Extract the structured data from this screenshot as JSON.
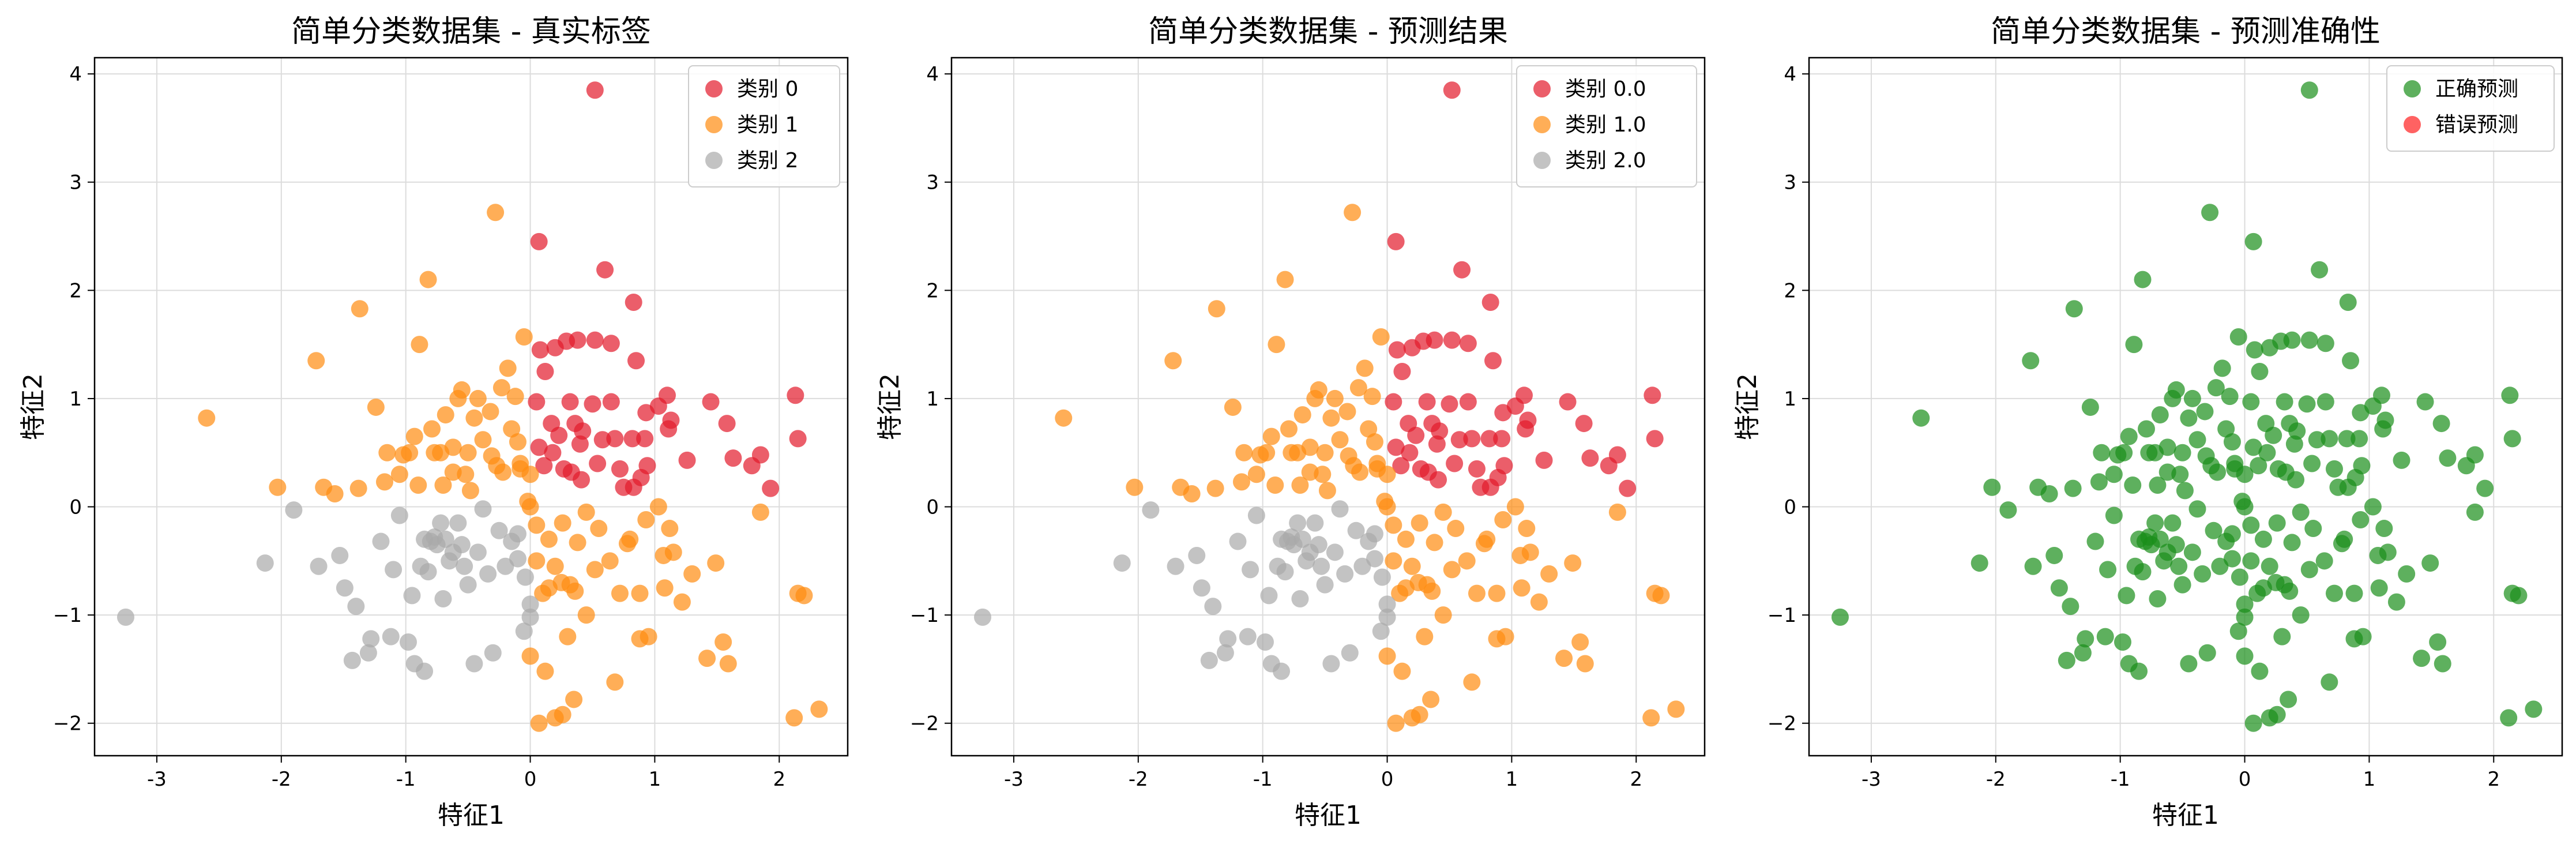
{
  "chart_data": [
    {
      "type": "scatter",
      "title": "简单分类数据集 - 真实标签",
      "xlabel": "特征1",
      "ylabel": "特征2",
      "xlim": [
        -3.5,
        2.55
      ],
      "ylim": [
        -2.3,
        4.15
      ],
      "xticks": [
        "-3",
        "-2",
        "-1",
        "0",
        "1",
        "2"
      ],
      "yticks": [
        "−2",
        "−1",
        "0",
        "1",
        "2",
        "3",
        "4"
      ],
      "grid": true,
      "legend_position": "top-right",
      "series": [
        {
          "name": "类别 0",
          "color": "#e31a2b",
          "points": [
            [
              0.52,
              3.85
            ],
            [
              0.07,
              2.45
            ],
            [
              0.6,
              2.19
            ],
            [
              0.83,
              1.89
            ],
            [
              0.29,
              1.53
            ],
            [
              0.38,
              1.54
            ],
            [
              0.52,
              1.54
            ],
            [
              0.65,
              1.51
            ],
            [
              0.2,
              1.47
            ],
            [
              0.08,
              1.45
            ],
            [
              0.85,
              1.35
            ],
            [
              0.12,
              1.25
            ],
            [
              0.32,
              0.97
            ],
            [
              0.05,
              0.97
            ],
            [
              0.5,
              0.95
            ],
            [
              0.65,
              0.97
            ],
            [
              0.93,
              0.87
            ],
            [
              1.03,
              0.93
            ],
            [
              1.1,
              1.03
            ],
            [
              1.45,
              0.97
            ],
            [
              2.13,
              1.03
            ],
            [
              0.17,
              0.77
            ],
            [
              0.23,
              0.66
            ],
            [
              0.36,
              0.77
            ],
            [
              0.4,
              0.58
            ],
            [
              0.58,
              0.62
            ],
            [
              0.68,
              0.63
            ],
            [
              0.82,
              0.63
            ],
            [
              0.92,
              0.63
            ],
            [
              1.13,
              0.8
            ],
            [
              1.11,
              0.72
            ],
            [
              1.58,
              0.77
            ],
            [
              0.07,
              0.55
            ],
            [
              0.11,
              0.38
            ],
            [
              0.18,
              0.5
            ],
            [
              0.27,
              0.35
            ],
            [
              0.33,
              0.32
            ],
            [
              0.41,
              0.25
            ],
            [
              0.54,
              0.4
            ],
            [
              0.72,
              0.35
            ],
            [
              0.75,
              0.18
            ],
            [
              0.83,
              0.18
            ],
            [
              0.89,
              0.27
            ],
            [
              0.94,
              0.38
            ],
            [
              1.26,
              0.43
            ],
            [
              1.63,
              0.45
            ],
            [
              1.78,
              0.38
            ],
            [
              1.85,
              0.48
            ],
            [
              1.93,
              0.17
            ],
            [
              2.15,
              0.63
            ],
            [
              0.42,
              0.7
            ]
          ]
        },
        {
          "name": "类别 1",
          "color": "#ff8c0f",
          "points": [
            [
              -2.6,
              0.82
            ],
            [
              -2.03,
              0.18
            ],
            [
              -1.72,
              1.35
            ],
            [
              -1.66,
              0.18
            ],
            [
              -1.57,
              0.12
            ],
            [
              -1.37,
              1.83
            ],
            [
              -1.38,
              0.17
            ],
            [
              -1.24,
              0.92
            ],
            [
              -1.15,
              0.5
            ],
            [
              -1.17,
              0.23
            ],
            [
              -1.02,
              0.48
            ],
            [
              -0.97,
              0.5
            ],
            [
              -0.93,
              0.65
            ],
            [
              -0.89,
              1.5
            ],
            [
              -0.82,
              2.1
            ],
            [
              -0.9,
              0.2
            ],
            [
              -0.79,
              0.72
            ],
            [
              -0.77,
              0.5
            ],
            [
              -0.7,
              0.2
            ],
            [
              -0.68,
              0.85
            ],
            [
              -0.62,
              0.55
            ],
            [
              -0.58,
              1.0
            ],
            [
              -0.55,
              1.08
            ],
            [
              -0.5,
              0.5
            ],
            [
              -0.45,
              0.82
            ],
            [
              -0.48,
              0.15
            ],
            [
              -0.42,
              1.0
            ],
            [
              -0.38,
              0.62
            ],
            [
              -0.31,
              0.47
            ],
            [
              -0.28,
              2.72
            ],
            [
              -0.23,
              1.1
            ],
            [
              -0.18,
              1.28
            ],
            [
              -0.15,
              0.72
            ],
            [
              -0.12,
              1.02
            ],
            [
              -0.08,
              0.4
            ],
            [
              -0.05,
              1.57
            ],
            [
              0.0,
              0.3
            ],
            [
              -0.27,
              0.38
            ],
            [
              -0.22,
              0.32
            ],
            [
              0.0,
              0.0
            ],
            [
              0.05,
              -0.17
            ],
            [
              0.15,
              -0.3
            ],
            [
              0.2,
              -0.55
            ],
            [
              0.26,
              -0.15
            ],
            [
              0.32,
              -0.72
            ],
            [
              0.38,
              -0.33
            ],
            [
              0.45,
              -0.05
            ],
            [
              0.52,
              -0.58
            ],
            [
              0.55,
              -0.2
            ],
            [
              0.64,
              -0.5
            ],
            [
              0.72,
              -0.8
            ],
            [
              0.78,
              -0.34
            ],
            [
              0.88,
              -1.22
            ],
            [
              0.93,
              -0.12
            ],
            [
              1.07,
              -0.45
            ],
            [
              1.08,
              -0.75
            ],
            [
              1.15,
              -0.42
            ],
            [
              1.22,
              -0.88
            ],
            [
              1.3,
              -0.62
            ],
            [
              1.42,
              -1.4
            ],
            [
              1.49,
              -0.52
            ],
            [
              1.55,
              -1.25
            ],
            [
              1.59,
              -1.45
            ],
            [
              1.85,
              -0.05
            ],
            [
              2.15,
              -0.8
            ],
            [
              2.2,
              -0.82
            ],
            [
              2.12,
              -1.95
            ],
            [
              2.32,
              -1.87
            ],
            [
              0.07,
              -2.0
            ],
            [
              0.2,
              -1.95
            ],
            [
              0.26,
              -1.92
            ],
            [
              0.35,
              -1.78
            ],
            [
              0.12,
              -1.52
            ],
            [
              0.0,
              -1.38
            ],
            [
              0.3,
              -1.2
            ],
            [
              0.45,
              -1.0
            ],
            [
              0.15,
              -0.75
            ],
            [
              0.05,
              -0.5
            ],
            [
              0.1,
              -0.8
            ],
            [
              0.25,
              -0.7
            ],
            [
              0.36,
              -0.78
            ],
            [
              0.68,
              -1.62
            ],
            [
              0.8,
              -0.3
            ],
            [
              0.88,
              -0.8
            ],
            [
              0.95,
              -1.2
            ],
            [
              1.03,
              0.0
            ],
            [
              1.12,
              -0.2
            ],
            [
              -0.08,
              0.35
            ],
            [
              -0.32,
              0.88
            ],
            [
              -0.62,
              0.32
            ],
            [
              -1.05,
              0.3
            ],
            [
              -0.72,
              0.5
            ],
            [
              -0.52,
              0.3
            ],
            [
              -0.1,
              0.6
            ],
            [
              -0.02,
              0.05
            ]
          ]
        },
        {
          "name": "类别 2",
          "color": "#a9a9a9",
          "points": [
            [
              -3.25,
              -1.02
            ],
            [
              -2.13,
              -0.52
            ],
            [
              -1.9,
              -0.03
            ],
            [
              -1.7,
              -0.55
            ],
            [
              -1.53,
              -0.45
            ],
            [
              -1.49,
              -0.75
            ],
            [
              -1.43,
              -1.42
            ],
            [
              -1.4,
              -0.92
            ],
            [
              -1.3,
              -1.35
            ],
            [
              -1.28,
              -1.22
            ],
            [
              -1.2,
              -0.32
            ],
            [
              -1.12,
              -1.2
            ],
            [
              -1.1,
              -0.58
            ],
            [
              -1.05,
              -0.08
            ],
            [
              -0.93,
              -1.45
            ],
            [
              -0.95,
              -0.82
            ],
            [
              -0.88,
              -0.55
            ],
            [
              -0.85,
              -0.3
            ],
            [
              -0.82,
              -0.6
            ],
            [
              -0.8,
              -0.32
            ],
            [
              -0.77,
              -0.28
            ],
            [
              -0.75,
              -0.35
            ],
            [
              -0.72,
              -0.15
            ],
            [
              -0.68,
              -0.3
            ],
            [
              -0.65,
              -0.5
            ],
            [
              -0.62,
              -0.42
            ],
            [
              -0.58,
              -0.15
            ],
            [
              -0.55,
              -0.35
            ],
            [
              -0.5,
              -0.72
            ],
            [
              -0.45,
              -1.45
            ],
            [
              -0.42,
              -0.42
            ],
            [
              -0.38,
              -0.02
            ],
            [
              -0.34,
              -0.62
            ],
            [
              -0.3,
              -1.35
            ],
            [
              -0.25,
              -0.22
            ],
            [
              -0.2,
              -0.55
            ],
            [
              -0.15,
              -0.32
            ],
            [
              -0.1,
              -0.48
            ],
            [
              -0.05,
              -1.15
            ],
            [
              0.0,
              -1.02
            ],
            [
              0.0,
              -0.9
            ],
            [
              -0.04,
              -0.65
            ],
            [
              -0.1,
              -0.25
            ],
            [
              -0.85,
              -1.52
            ],
            [
              -0.98,
              -1.25
            ],
            [
              -0.7,
              -0.85
            ],
            [
              -0.53,
              -0.55
            ]
          ]
        }
      ]
    },
    {
      "type": "scatter",
      "title": "简单分类数据集 - 预测结果",
      "xlabel": "特征1",
      "ylabel": "特征2",
      "xlim": [
        -3.5,
        2.55
      ],
      "ylim": [
        -2.3,
        4.15
      ],
      "xticks": [
        "-3",
        "-2",
        "-1",
        "0",
        "1",
        "2"
      ],
      "yticks": [
        "−2",
        "−1",
        "0",
        "1",
        "2",
        "3",
        "4"
      ],
      "grid": true,
      "legend_position": "top-right",
      "series": [
        {
          "name": "类别 0.0",
          "color": "#e31a2b",
          "same_points_as_panel_0_series": 0
        },
        {
          "name": "类别 1.0",
          "color": "#ff8c0f",
          "same_points_as_panel_0_series": 1
        },
        {
          "name": "类别 2.0",
          "color": "#a9a9a9",
          "same_points_as_panel_0_series": 2
        }
      ]
    },
    {
      "type": "scatter",
      "title": "简单分类数据集 - 预测准确性",
      "xlabel": "特征1",
      "ylabel": "特征2",
      "xlim": [
        -3.5,
        2.55
      ],
      "ylim": [
        -2.3,
        4.15
      ],
      "xticks": [
        "-3",
        "-2",
        "-1",
        "0",
        "1",
        "2"
      ],
      "yticks": [
        "−2",
        "−1",
        "0",
        "1",
        "2",
        "3",
        "4"
      ],
      "grid": true,
      "legend_position": "top-right",
      "series": [
        {
          "name": "正确预测",
          "color": "#1a8f1a",
          "all_points_from_panel_0": true
        },
        {
          "name": "错误预测",
          "color": "#ff2020",
          "points": []
        }
      ]
    }
  ]
}
